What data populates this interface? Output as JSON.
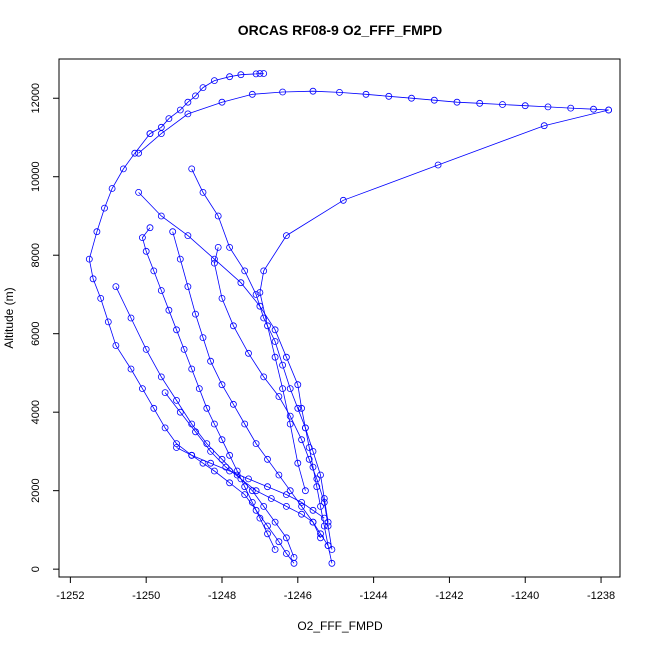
{
  "chart_data": {
    "type": "scatter",
    "title": "ORCAS RF08-9 O2_FFF_FMPD",
    "xlabel": "O2_FFF_FMPD",
    "ylabel": "Altitude (m)",
    "xlim": [
      -1252.3,
      -1237.5
    ],
    "ylim": [
      -200,
      13000
    ],
    "x_ticks": [
      -1252,
      -1250,
      -1248,
      -1246,
      -1244,
      -1242,
      -1240,
      -1238
    ],
    "y_ticks": [
      0,
      2000,
      4000,
      6000,
      8000,
      10000,
      12000
    ],
    "grid": false,
    "marker_color": "#0000ff",
    "line_color": "#0000ff",
    "series": [
      {
        "x": [
          -1246.9,
          -1247.0,
          -1247.1,
          -1247.5,
          -1247.8,
          -1248.2,
          -1248.5,
          -1248.7,
          -1248.9,
          -1249.1,
          -1249.4,
          -1249.6,
          -1249.9
        ],
        "y": [
          12630,
          12630,
          12620,
          12600,
          12550,
          12450,
          12270,
          12060,
          11900,
          11700,
          11480,
          11260,
          11100
        ]
      },
      {
        "x": [
          -1249.9,
          -1250.3,
          -1250.6,
          -1250.9,
          -1251.1,
          -1251.3,
          -1251.5,
          -1251.4,
          -1251.2,
          -1251.0,
          -1250.8,
          -1250.4,
          -1250.1,
          -1249.8,
          -1249.5,
          -1249.2,
          -1248.8,
          -1248.5,
          -1248.2,
          -1247.8,
          -1247.4,
          -1247.1,
          -1246.8,
          -1246.5,
          -1246.3,
          -1246.1
        ],
        "y": [
          11100,
          10600,
          10200,
          9700,
          9200,
          8600,
          7900,
          7400,
          6900,
          6300,
          5700,
          5100,
          4600,
          4100,
          3600,
          3200,
          2900,
          2700,
          2500,
          2200,
          1900,
          1500,
          1100,
          700,
          400,
          150
        ]
      },
      {
        "x": [
          -1248.8,
          -1248.5,
          -1248.1,
          -1247.8,
          -1247.4,
          -1247.1,
          -1246.9,
          -1246.6,
          -1246.4,
          -1246.2,
          -1246.0,
          -1245.8,
          -1245.6,
          -1245.4,
          -1245.3,
          -1245.2
        ],
        "y": [
          10200,
          9600,
          9000,
          8200,
          7600,
          7000,
          6400,
          5800,
          5200,
          4600,
          4100,
          3600,
          3000,
          2400,
          1800,
          1200
        ]
      },
      {
        "x": [
          -1245.1,
          -1245.2,
          -1245.3,
          -1245.4,
          -1245.5,
          -1245.6,
          -1245.7,
          -1245.8,
          -1245.9,
          -1246.0,
          -1246.3,
          -1246.6,
          -1247.0,
          -1247.5,
          -1248.2,
          -1248.9,
          -1249.6,
          -1250.2
        ],
        "y": [
          150,
          600,
          1100,
          1600,
          2100,
          2600,
          3100,
          3600,
          4100,
          4700,
          5400,
          6100,
          6700,
          7300,
          7900,
          8500,
          9000,
          9600
        ]
      },
      {
        "x": [
          -1250.2,
          -1249.6,
          -1248.9,
          -1248.0,
          -1247.2,
          -1246.4,
          -1245.6,
          -1244.9,
          -1244.2,
          -1243.6,
          -1243.0,
          -1242.4,
          -1241.8,
          -1241.2,
          -1240.6,
          -1240.0,
          -1239.4,
          -1238.8,
          -1238.2,
          -1237.8
        ],
        "y": [
          10600,
          11100,
          11600,
          11900,
          12100,
          12160,
          12180,
          12150,
          12100,
          12050,
          12000,
          11950,
          11900,
          11870,
          11840,
          11810,
          11780,
          11750,
          11720,
          11700
        ]
      },
      {
        "x": [
          -1237.8,
          -1239.5,
          -1242.3,
          -1244.8,
          -1246.3,
          -1246.9,
          -1247.0,
          -1246.8,
          -1246.6,
          -1246.4,
          -1246.2,
          -1246.0,
          -1245.8
        ],
        "y": [
          11700,
          11300,
          10300,
          9400,
          8500,
          7600,
          7050,
          6200,
          5400,
          4600,
          3700,
          2700,
          2000
        ]
      },
      {
        "x": [
          -1249.9,
          -1250.1,
          -1250.0,
          -1249.8,
          -1249.6,
          -1249.4,
          -1249.2,
          -1249.0,
          -1248.8,
          -1248.6,
          -1248.4,
          -1248.2,
          -1248.0,
          -1247.8,
          -1247.6,
          -1247.4,
          -1247.2,
          -1247.0,
          -1246.8,
          -1246.6
        ],
        "y": [
          8700,
          8450,
          8100,
          7600,
          7100,
          6600,
          6100,
          5600,
          5100,
          4600,
          4100,
          3700,
          3300,
          2900,
          2500,
          2100,
          1700,
          1300,
          900,
          500
        ]
      },
      {
        "x": [
          -1249.3,
          -1249.1,
          -1248.9,
          -1248.7,
          -1248.5,
          -1248.3,
          -1248.0,
          -1247.7,
          -1247.4,
          -1247.1,
          -1246.8,
          -1246.5,
          -1246.2,
          -1245.9,
          -1245.6,
          -1245.4
        ],
        "y": [
          8600,
          7900,
          7200,
          6500,
          5900,
          5300,
          4700,
          4200,
          3700,
          3200,
          2800,
          2400,
          2000,
          1600,
          1200,
          800
        ]
      },
      {
        "x": [
          -1248.1,
          -1248.2,
          -1248.0,
          -1247.7,
          -1247.3,
          -1246.9,
          -1246.5,
          -1246.2,
          -1245.9,
          -1245.7,
          -1245.5,
          -1245.3,
          -1245.2,
          -1245.1
        ],
        "y": [
          8200,
          7800,
          6900,
          6200,
          5500,
          4900,
          4400,
          3900,
          3300,
          2800,
          2300,
          1700,
          1100,
          500
        ]
      },
      {
        "x": [
          -1250.8,
          -1250.4,
          -1250.0,
          -1249.6,
          -1249.2,
          -1248.8,
          -1248.4,
          -1248.0,
          -1247.6,
          -1247.2,
          -1246.9,
          -1246.6,
          -1246.3,
          -1246.1
        ],
        "y": [
          7200,
          6400,
          5600,
          4900,
          4300,
          3700,
          3200,
          2800,
          2400,
          2000,
          1600,
          1200,
          800,
          300
        ]
      },
      {
        "x": [
          -1249.5,
          -1249.1,
          -1248.7,
          -1248.3,
          -1247.9,
          -1247.5,
          -1247.1,
          -1246.7,
          -1246.3,
          -1245.9,
          -1245.6,
          -1245.4,
          -1245.2
        ],
        "y": [
          4500,
          4000,
          3500,
          3000,
          2600,
          2300,
          2000,
          1800,
          1600,
          1400,
          1200,
          900,
          600
        ]
      },
      {
        "x": [
          -1249.2,
          -1248.8,
          -1248.3,
          -1247.8,
          -1247.3,
          -1246.8,
          -1246.3,
          -1245.9,
          -1245.6,
          -1245.3
        ],
        "y": [
          3100,
          2900,
          2700,
          2500,
          2300,
          2100,
          1900,
          1700,
          1500,
          1300
        ]
      }
    ]
  }
}
